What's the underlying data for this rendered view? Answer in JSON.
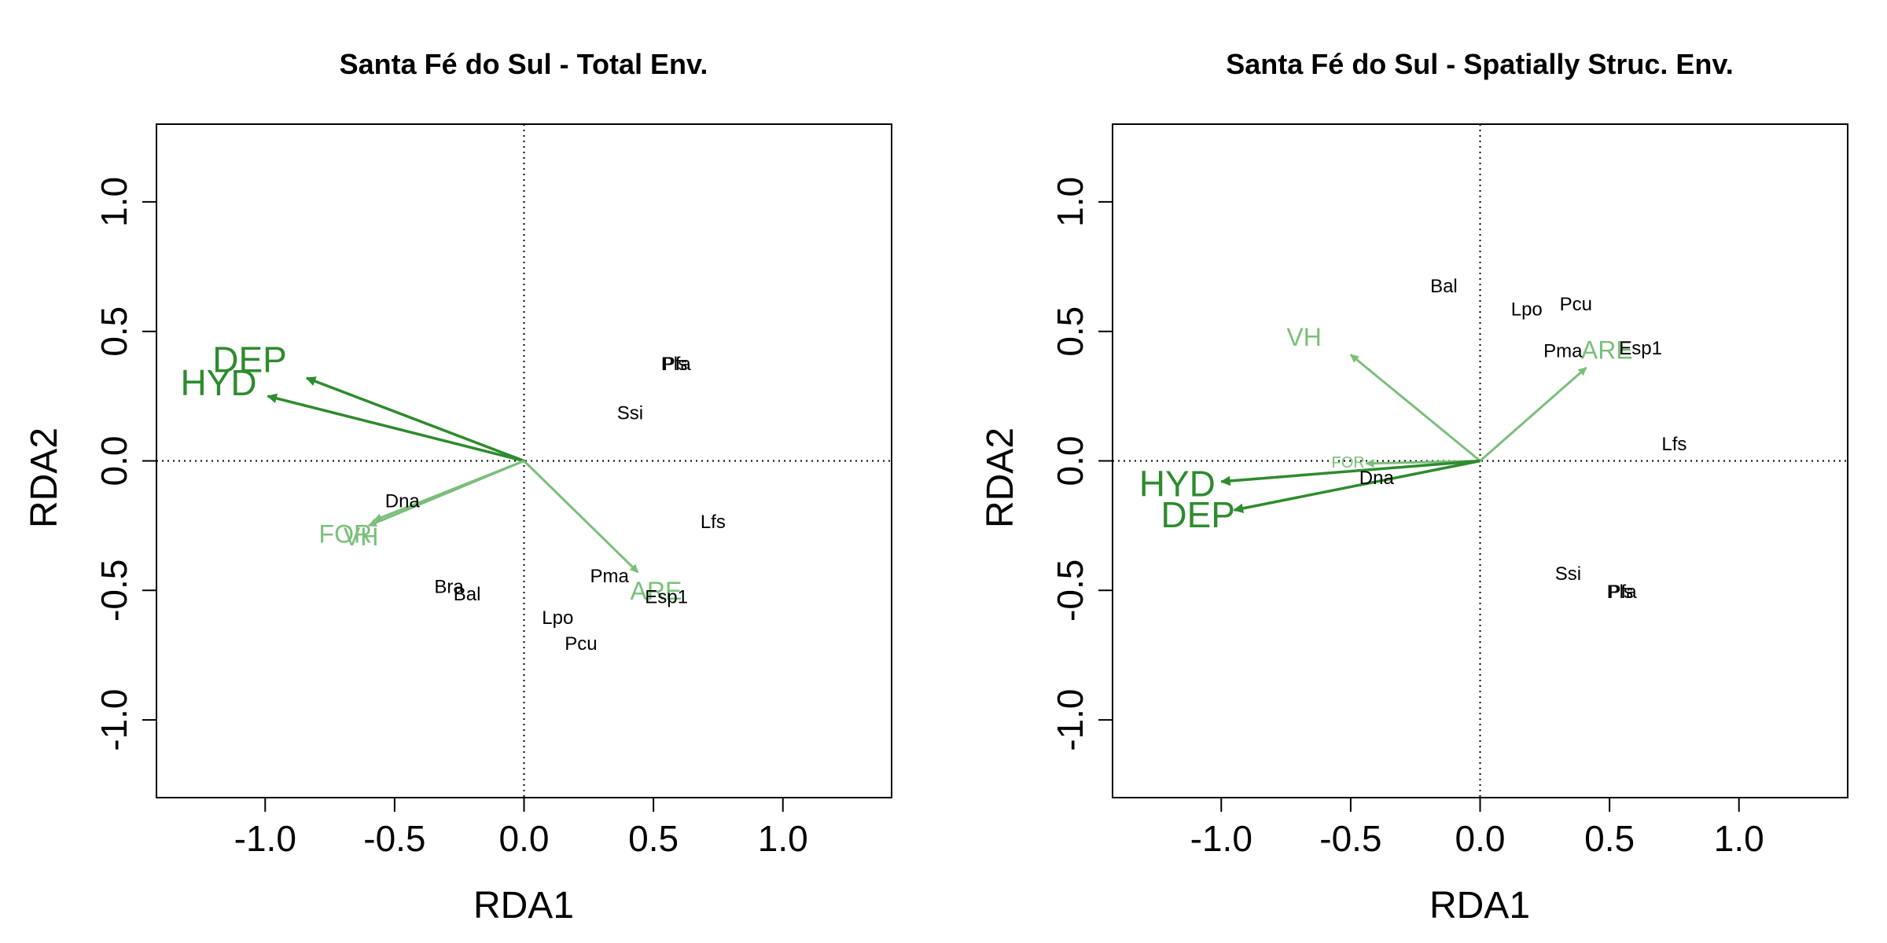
{
  "figure": {
    "colors": {
      "dark_green": "#2E8B2E",
      "light_green": "#7BBE7B",
      "axis": "#000000"
    },
    "panels": [
      {
        "title": "Santa Fé do Sul - Total Env.",
        "xlabel": "RDA1",
        "ylabel": "RDA2"
      },
      {
        "title": "Santa Fé do Sul - Spatially Struc. Env.",
        "xlabel": "RDA1",
        "ylabel": "RDA2"
      }
    ]
  },
  "chart_data": [
    {
      "type": "scatter",
      "subtype": "rda-biplot",
      "title": "Santa Fé do Sul - Total Env.",
      "xlabel": "RDA1",
      "ylabel": "RDA2",
      "xlim": [
        -1.42,
        1.42
      ],
      "ylim": [
        -1.3,
        1.3
      ],
      "xticks": [
        -1.0,
        -0.5,
        0.0,
        0.5,
        1.0
      ],
      "yticks": [
        -1.0,
        -0.5,
        0.0,
        0.5,
        1.0
      ],
      "xtick_labels": [
        "-1.0",
        "-0.5",
        "0.0",
        "0.5",
        "1.0"
      ],
      "ytick_labels": [
        "-1.0",
        "-0.5",
        "0.0",
        "0.5",
        "1.0"
      ],
      "zero_lines": true,
      "species": [
        {
          "label": "Pfa",
          "x": 0.59,
          "y": 0.37
        },
        {
          "label": "Pls",
          "x": 0.58,
          "y": 0.37
        },
        {
          "label": "Ssi",
          "x": 0.41,
          "y": 0.18
        },
        {
          "label": "Lfs",
          "x": 0.73,
          "y": -0.24
        },
        {
          "label": "Dna",
          "x": -0.47,
          "y": -0.16
        },
        {
          "label": "Pma",
          "x": 0.33,
          "y": -0.45
        },
        {
          "label": "Esp1",
          "x": 0.55,
          "y": -0.53
        },
        {
          "label": "Bra",
          "x": -0.29,
          "y": -0.49
        },
        {
          "label": "Bal",
          "x": -0.22,
          "y": -0.52
        },
        {
          "label": "Lpo",
          "x": 0.13,
          "y": -0.61
        },
        {
          "label": "Pcu",
          "x": 0.22,
          "y": -0.71
        }
      ],
      "env_vectors": [
        {
          "label": "DEP",
          "x": -0.84,
          "y": 0.32,
          "label_x": -1.06,
          "label_y": 0.38,
          "color": "dark",
          "size": "large"
        },
        {
          "label": "HYD",
          "x": -0.99,
          "y": 0.25,
          "label_x": -1.18,
          "label_y": 0.29,
          "color": "dark",
          "size": "large"
        },
        {
          "label": "FOR",
          "x": -0.6,
          "y": -0.25,
          "label_x": -0.69,
          "label_y": -0.29,
          "color": "light",
          "size": "medium"
        },
        {
          "label": "VH",
          "x": -0.58,
          "y": -0.23,
          "label_x": -0.63,
          "label_y": -0.3,
          "color": "light",
          "size": "medium"
        },
        {
          "label": "ARE",
          "x": 0.44,
          "y": -0.43,
          "label_x": 0.51,
          "label_y": -0.51,
          "color": "light",
          "size": "medium"
        }
      ]
    },
    {
      "type": "scatter",
      "subtype": "rda-biplot",
      "title": "Santa Fé do Sul - Spatially Struc. Env.",
      "xlabel": "RDA1",
      "ylabel": "RDA2",
      "xlim": [
        -1.42,
        1.42
      ],
      "ylim": [
        -1.3,
        1.3
      ],
      "xticks": [
        -1.0,
        -0.5,
        0.0,
        0.5,
        1.0
      ],
      "yticks": [
        -1.0,
        -0.5,
        0.0,
        0.5,
        1.0
      ],
      "xtick_labels": [
        "-1.0",
        "-0.5",
        "0.0",
        "0.5",
        "1.0"
      ],
      "ytick_labels": [
        "-1.0",
        "-0.5",
        "0.0",
        "0.5",
        "1.0"
      ],
      "zero_lines": true,
      "species": [
        {
          "label": "Bal",
          "x": -0.14,
          "y": 0.67
        },
        {
          "label": "Lpo",
          "x": 0.18,
          "y": 0.58
        },
        {
          "label": "Pcu",
          "x": 0.37,
          "y": 0.6
        },
        {
          "label": "Pma",
          "x": 0.32,
          "y": 0.42
        },
        {
          "label": "Esp1",
          "x": 0.62,
          "y": 0.43
        },
        {
          "label": "Lfs",
          "x": 0.75,
          "y": 0.06
        },
        {
          "label": "Dna",
          "x": -0.4,
          "y": -0.07
        },
        {
          "label": "Ssi",
          "x": 0.34,
          "y": -0.44
        },
        {
          "label": "Pfa",
          "x": 0.55,
          "y": -0.51
        },
        {
          "label": "Pls",
          "x": 0.54,
          "y": -0.51
        }
      ],
      "env_vectors": [
        {
          "label": "VH",
          "x": -0.5,
          "y": 0.41,
          "label_x": -0.68,
          "label_y": 0.47,
          "color": "light",
          "size": "medium"
        },
        {
          "label": "ARE",
          "x": 0.41,
          "y": 0.36,
          "label_x": 0.49,
          "label_y": 0.42,
          "color": "light",
          "size": "medium"
        },
        {
          "label": "FOR",
          "x": -0.44,
          "y": -0.01,
          "label_x": -0.51,
          "label_y": -0.01,
          "color": "light",
          "size": "small"
        },
        {
          "label": "HYD",
          "x": -1.0,
          "y": -0.08,
          "label_x": -1.17,
          "label_y": -0.1,
          "color": "dark",
          "size": "large"
        },
        {
          "label": "DEP",
          "x": -0.95,
          "y": -0.19,
          "label_x": -1.09,
          "label_y": -0.22,
          "color": "dark",
          "size": "large"
        }
      ]
    }
  ]
}
